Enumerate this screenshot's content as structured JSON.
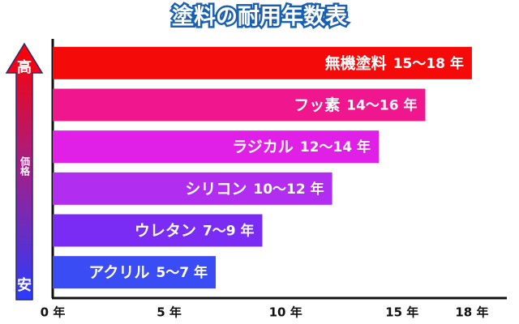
{
  "chart_data": {
    "type": "bar",
    "orientation": "horizontal",
    "title": "塗料の耐用年数表",
    "categories": [
      "無機塗料",
      "フッ素",
      "ラジカル",
      "シリコン",
      "ウレタン",
      "アクリル"
    ],
    "values": [
      18,
      16,
      14,
      12,
      9,
      7
    ],
    "value_labels": [
      "15〜18 年",
      "14〜16 年",
      "12〜14 年",
      "10〜12 年",
      "7〜9 年",
      "5〜7 年"
    ],
    "colors": [
      "#f50a0a",
      "#f0168e",
      "#e020e6",
      "#b12ef0",
      "#7a2cf5",
      "#3a4df5"
    ],
    "xlim": [
      0,
      19.5
    ],
    "xticks": [
      {
        "value": 0,
        "label": "0 年"
      },
      {
        "value": 5,
        "label": "5 年"
      },
      {
        "value": 10,
        "label": "10 年"
      },
      {
        "value": 15,
        "label": "15 年"
      },
      {
        "value": 18,
        "label": "18 年"
      }
    ],
    "scale_labels": {
      "high": "高",
      "label": "価格",
      "low": "安"
    }
  }
}
